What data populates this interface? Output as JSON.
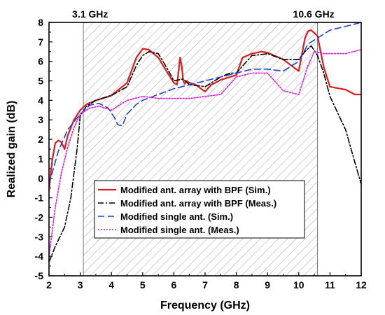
{
  "chart_data": {
    "type": "line",
    "title": "",
    "xlabel": "Frequency (GHz)",
    "ylabel": "Realized gain (dB)",
    "xlim": [
      2,
      12
    ],
    "ylim": [
      -5,
      8
    ],
    "xticks": [
      2,
      3,
      4,
      5,
      6,
      7,
      8,
      9,
      10,
      11,
      12
    ],
    "yticks": [
      -5,
      -4,
      -3,
      -2,
      -1,
      0,
      1,
      2,
      3,
      4,
      5,
      6,
      7,
      8
    ],
    "grid": false,
    "legend_position": "lower-center",
    "shaded_band": {
      "x_start": 3.1,
      "x_end": 10.6,
      "pattern": "diagonal-hatch",
      "start_label": "3.1 GHz",
      "end_label": "10.6 GHz"
    },
    "series": [
      {
        "name": "Modified ant. array with BPF (Sim.)",
        "color": "#e31a1c",
        "style": "solid",
        "x": [
          2.0,
          2.1,
          2.2,
          2.3,
          2.4,
          2.5,
          2.6,
          2.8,
          3.0,
          3.2,
          3.5,
          4.0,
          4.5,
          4.8,
          5.0,
          5.2,
          5.5,
          5.8,
          6.0,
          6.1,
          6.2,
          6.25,
          6.3,
          6.35,
          6.4,
          6.5,
          6.7,
          7.0,
          7.2,
          7.5,
          8.0,
          8.2,
          8.5,
          8.8,
          9.0,
          9.5,
          10.0,
          10.2,
          10.3,
          10.4,
          10.6,
          10.8,
          11.0,
          11.5,
          11.8,
          12.0
        ],
        "y": [
          -0.6,
          0.9,
          1.8,
          1.95,
          1.85,
          1.5,
          2.2,
          3.0,
          3.5,
          3.8,
          4.0,
          4.25,
          4.9,
          6.2,
          6.65,
          6.6,
          6.2,
          5.4,
          4.9,
          4.8,
          6.2,
          5.8,
          5.0,
          4.85,
          5.0,
          4.9,
          4.8,
          4.45,
          4.8,
          5.05,
          5.3,
          6.2,
          6.4,
          6.5,
          6.45,
          6.1,
          5.5,
          7.2,
          7.55,
          7.6,
          7.3,
          5.7,
          4.7,
          4.55,
          4.3,
          4.3
        ]
      },
      {
        "name": "Modified ant. array with BPF (Meas.)",
        "color": "#000000",
        "style": "dash-dot",
        "x": [
          2.0,
          2.2,
          2.5,
          2.7,
          2.9,
          3.0,
          3.2,
          3.5,
          4.0,
          4.5,
          4.8,
          5.0,
          5.2,
          5.5,
          5.8,
          6.0,
          6.3,
          6.5,
          6.8,
          7.0,
          7.5,
          7.8,
          8.0,
          8.5,
          8.8,
          9.0,
          9.5,
          10.0,
          10.2,
          10.4,
          10.6,
          10.8,
          11.0,
          11.5,
          11.8,
          12.0
        ],
        "y": [
          -4.3,
          -3.5,
          -2.5,
          -1.0,
          1.5,
          3.2,
          3.7,
          4.0,
          4.25,
          4.7,
          5.8,
          6.3,
          6.5,
          6.4,
          5.6,
          5.0,
          5.1,
          4.8,
          4.75,
          4.7,
          5.2,
          5.4,
          5.4,
          6.3,
          6.35,
          6.4,
          6.1,
          6.1,
          6.5,
          6.8,
          6.3,
          5.4,
          4.2,
          2.5,
          0.8,
          -0.3
        ]
      },
      {
        "name": "Modified single ant. (Sim.)",
        "color": "#1f3fdb",
        "style": "dashed",
        "x": [
          2.0,
          2.3,
          2.6,
          3.0,
          3.3,
          3.6,
          3.9,
          4.1,
          4.2,
          4.35,
          4.5,
          4.8,
          5.0,
          5.5,
          6.0,
          6.5,
          7.0,
          7.5,
          8.0,
          8.5,
          9.0,
          9.5,
          10.0,
          10.3,
          10.6,
          11.0,
          11.5,
          12.0
        ],
        "y": [
          -0.3,
          1.4,
          2.5,
          3.3,
          3.75,
          3.85,
          3.6,
          3.1,
          2.75,
          2.7,
          3.3,
          3.8,
          4.0,
          4.3,
          4.6,
          4.8,
          5.0,
          5.2,
          5.4,
          5.6,
          5.6,
          5.5,
          6.0,
          6.9,
          7.2,
          7.6,
          7.8,
          8.0
        ]
      },
      {
        "name": "Modified single ant. (Meas.)",
        "color": "#e619e6",
        "style": "dotted",
        "x": [
          2.0,
          2.2,
          2.4,
          2.6,
          2.8,
          3.0,
          3.3,
          3.6,
          4.0,
          4.5,
          5.0,
          5.5,
          6.0,
          6.5,
          7.0,
          7.5,
          8.0,
          8.5,
          9.0,
          9.5,
          10.0,
          10.3,
          10.5,
          10.8,
          11.0,
          11.5,
          12.0
        ],
        "y": [
          -4.0,
          -1.5,
          0.3,
          1.6,
          2.6,
          3.3,
          3.6,
          3.7,
          3.5,
          4.0,
          4.2,
          4.1,
          4.1,
          4.1,
          4.2,
          4.3,
          5.2,
          5.4,
          5.4,
          4.5,
          4.3,
          5.8,
          6.5,
          6.4,
          6.4,
          6.4,
          6.6
        ]
      }
    ]
  }
}
